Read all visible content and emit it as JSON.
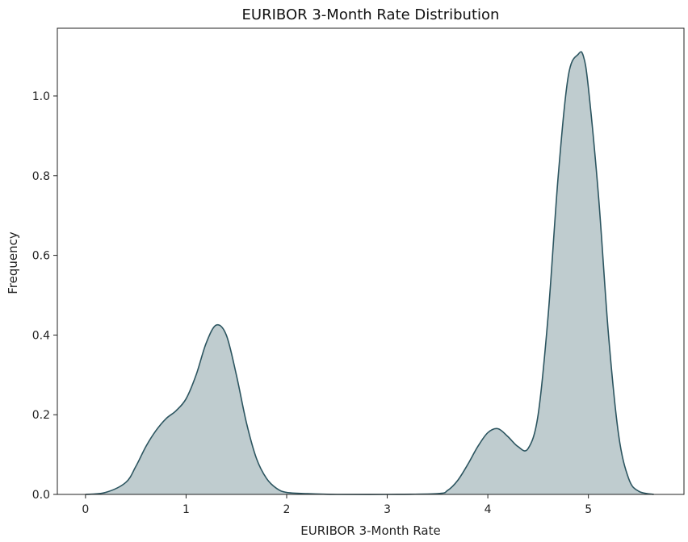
{
  "chart_data": {
    "type": "area",
    "title": "EURIBOR 3-Month Rate Distribution",
    "xlabel": "EURIBOR 3-Month Rate",
    "ylabel": "Frequency",
    "xlim": [
      -0.28,
      5.95
    ],
    "ylim": [
      0,
      1.17
    ],
    "xticks": [
      0,
      1,
      2,
      3,
      4,
      5
    ],
    "yticks": [
      0.0,
      0.2,
      0.4,
      0.6,
      0.8,
      1.0
    ],
    "xtick_labels": [
      "0",
      "1",
      "2",
      "3",
      "4",
      "5"
    ],
    "ytick_labels": [
      "0.0",
      "0.2",
      "0.4",
      "0.6",
      "0.8",
      "1.0"
    ],
    "grid": false,
    "colors": {
      "fill": "#bfcccf",
      "line": "#2c5560"
    },
    "series": [
      {
        "x": [
          0.0,
          0.2,
          0.4,
          0.5,
          0.6,
          0.7,
          0.8,
          0.9,
          1.0,
          1.1,
          1.2,
          1.3,
          1.4,
          1.5,
          1.6,
          1.7,
          1.8,
          1.9,
          2.0,
          2.2,
          2.5,
          3.0,
          3.5,
          3.6,
          3.7,
          3.8,
          3.9,
          4.0,
          4.1,
          4.2,
          4.3,
          4.4,
          4.5,
          4.6,
          4.7,
          4.8,
          4.9,
          4.95,
          5.0,
          5.1,
          5.2,
          5.3,
          5.4,
          5.5,
          5.65
        ],
        "y": [
          0.0,
          0.005,
          0.03,
          0.07,
          0.12,
          0.16,
          0.19,
          0.21,
          0.24,
          0.3,
          0.38,
          0.425,
          0.4,
          0.3,
          0.18,
          0.09,
          0.04,
          0.015,
          0.005,
          0.002,
          0.0,
          0.0,
          0.002,
          0.01,
          0.035,
          0.075,
          0.12,
          0.155,
          0.165,
          0.145,
          0.12,
          0.115,
          0.2,
          0.45,
          0.8,
          1.05,
          1.105,
          1.1,
          1.02,
          0.75,
          0.4,
          0.15,
          0.04,
          0.008,
          0.0
        ]
      }
    ]
  }
}
